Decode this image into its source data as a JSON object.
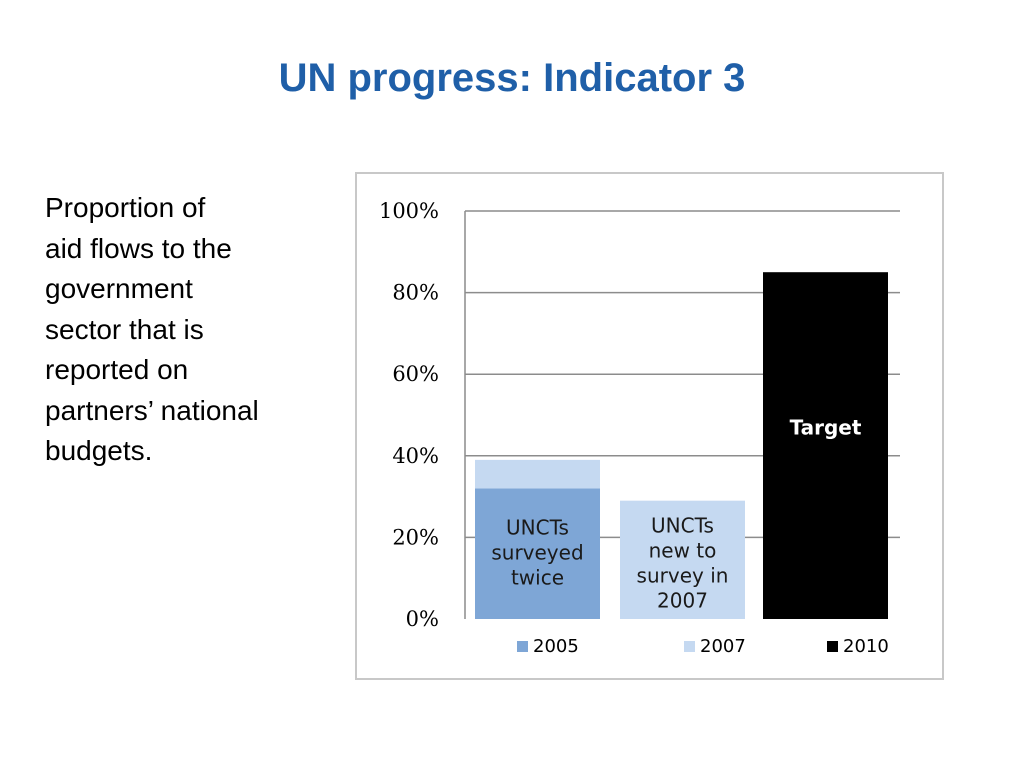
{
  "slide": {
    "title": "UN progress: Indicator 3",
    "description_lines": [
      "Proportion of",
      "aid flows to the",
      "government",
      "sector that is",
      "reported on",
      "partners’ national",
      "budgets."
    ]
  },
  "chart_data": {
    "type": "bar",
    "title": "",
    "xlabel": "",
    "ylabel": "",
    "ylim": [
      0,
      100
    ],
    "yticks": [
      "0%",
      "20%",
      "40%",
      "60%",
      "80%",
      "100%"
    ],
    "grid": true,
    "legend_position": "bottom",
    "legend": [
      {
        "name": "2005",
        "color": "#7ea6d6"
      },
      {
        "name": "2007",
        "color": "#c5d9f1"
      },
      {
        "name": "2010",
        "color": "#000000"
      }
    ],
    "bars": [
      {
        "label_lines": [
          "UNCTs",
          "surveyed",
          "twice"
        ],
        "label_color": "#1a1a1a",
        "segments": [
          {
            "series": "2005",
            "value": 32
          },
          {
            "series": "2007",
            "value": 7
          }
        ]
      },
      {
        "label_lines": [
          "UNCTs",
          "new to",
          "survey in",
          "2007"
        ],
        "label_color": "#1a1a1a",
        "segments": [
          {
            "series": "2007",
            "value": 29
          }
        ]
      },
      {
        "label_lines": [
          "Target"
        ],
        "label_color": "#ffffff",
        "segments": [
          {
            "series": "2010",
            "value": 85
          }
        ]
      }
    ]
  }
}
